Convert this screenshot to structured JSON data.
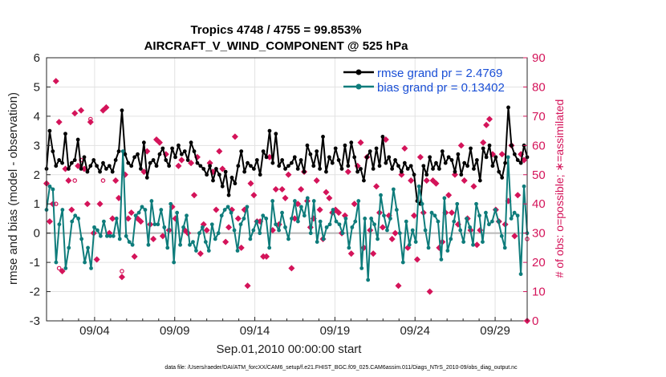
{
  "chart_data": {
    "type": "line",
    "title": "Tropics 4748 / 4755 = 99.853%",
    "subtitle": "AIRCRAFT_V_WIND_COMPONENT @ 525 hPa",
    "xlabel": "Sep.01,2010 00:00:00 start",
    "ylabel": "rmse and bias (model - observation)",
    "ylabel_right": "# of obs: o=possible; ∗=assimilated",
    "xlim": [
      1.0,
      31.0
    ],
    "ylim": [
      -3,
      6
    ],
    "ylim_right": [
      0,
      90
    ],
    "x_tick_values": [
      4,
      9,
      14,
      19,
      24,
      29
    ],
    "x_tick_labels": [
      "09/04",
      "09/09",
      "09/14",
      "09/19",
      "09/24",
      "09/29"
    ],
    "y_ticks": [
      "-3",
      "-2",
      "-1",
      "0",
      "1",
      "2",
      "3",
      "4",
      "5",
      "6"
    ],
    "y_ticks_right": [
      "0",
      "10",
      "20",
      "30",
      "40",
      "50",
      "60",
      "70",
      "80",
      "90"
    ],
    "grid": true,
    "legend_position": "top-right",
    "series": [
      {
        "name": "rmse grand pr = 2.4769",
        "color": "#000000",
        "values": [
          2.2,
          3.5,
          2.8,
          2.3,
          2.5,
          2.4,
          3.4,
          2.2,
          2.4,
          2.5,
          3.2,
          2.2,
          2.6,
          2.1,
          2.3,
          2.5,
          2.3,
          2.1,
          2.4,
          2.2,
          2.3,
          2.1,
          2.5,
          2.8,
          4.2,
          2.7,
          2.4,
          2.3,
          2.6,
          2.7,
          2.2,
          3.1,
          1.9,
          2.4,
          2.5,
          2.3,
          2.7,
          2.9,
          2.5,
          2.3,
          2.9,
          2.6,
          3.0,
          2.7,
          2.8,
          2.5,
          3.1,
          2.8,
          2.4,
          2.3,
          2.2,
          2.0,
          2.3,
          1.8,
          2.2,
          2.0,
          1.6,
          2.1,
          1.3,
          1.9,
          1.7,
          2.3,
          2.8,
          2.1,
          2.4,
          2.3,
          2.2,
          2.5,
          2.0,
          2.8,
          2.6,
          3.5,
          2.4,
          3.4,
          2.3,
          2.5,
          2.2,
          2.3,
          2.4,
          2.6,
          2.2,
          2.5,
          2.1,
          3.0,
          2.7,
          2.3,
          2.8,
          2.2,
          3.3,
          2.1,
          2.6,
          2.4,
          2.9,
          2.5,
          2.2,
          3.0,
          2.3,
          3.1,
          2.6,
          2.1,
          2.2,
          1.8,
          2.6,
          2.8,
          2.2,
          2.9,
          2.3,
          3.3,
          2.4,
          2.6,
          2.2,
          2.5,
          2.3,
          2.1,
          2.4,
          2.2,
          2.3,
          2.0,
          1.1,
          1.0,
          2.3,
          2.0,
          2.6,
          2.2,
          2.4,
          2.2,
          2.8,
          2.4,
          2.6,
          2.5,
          2.1,
          2.7,
          2.0,
          2.4,
          2.3,
          2.9,
          2.2,
          2.5,
          1.8,
          2.9,
          2.6,
          3.0,
          2.3,
          2.6,
          2.1,
          1.9,
          2.4,
          4.3,
          3.0,
          2.7,
          2.5,
          2.4,
          3.0,
          2.6
        ]
      },
      {
        "name": "bias grand pr = 0.13402",
        "color": "#0e7c7b",
        "values": [
          0.8,
          1.6,
          1.5,
          -1.0,
          0.3,
          0.8,
          -1.2,
          -0.5,
          0.4,
          0.6,
          0.5,
          -0.2,
          -1.0,
          -0.5,
          -1.2,
          0.2,
          0.1,
          -0.1,
          0.4,
          -0.1,
          -0.1,
          -0.1,
          0.5,
          -0.2,
          2.8,
          -0.1,
          -0.3,
          -0.4,
          0.6,
          0.7,
          0.9,
          0.8,
          -0.4,
          1.1,
          0.3,
          0.3,
          0.8,
          0.2,
          -0.5,
          1.0,
          -1.0,
          0.7,
          -0.4,
          0.2,
          0.6,
          -0.4,
          -0.3,
          -0.6,
          0.0,
          0.2,
          -0.3,
          -0.6,
          0.3,
          -0.2,
          0.0,
          0.6,
          0.8,
          0.9,
          0.7,
          0.1,
          -0.6,
          0.3,
          0.5,
          0.9,
          -0.2,
          0.1,
          0.4,
          0.0,
          0.6,
          0.5,
          -0.5,
          1.1,
          0.3,
          0.1,
          0.7,
          0.2,
          -0.2,
          0.5,
          1.1,
          0.4,
          0.9,
          0.6,
          1.2,
          0.0,
          1.1,
          -0.3,
          0.4,
          -0.2,
          0.2,
          0.3,
          0.8,
          0.4,
          0.3,
          0.0,
          0.5,
          -0.5,
          0.2,
          0.4,
          1.1,
          -1.2,
          0.5,
          -1.6,
          0.5,
          0.3,
          -0.2,
          1.3,
          0.6,
          0.1,
          0.5,
          1.5,
          0.8,
          0.0,
          -1.0,
          0.4,
          -0.4,
          0.1,
          -0.3,
          1.6,
          1.0,
          0.1,
          -0.5,
          0.7,
          0.6,
          0.4,
          -0.9,
          1.2,
          -0.6,
          -0.2,
          0.4,
          1.0,
          0.1,
          -0.3,
          0.5,
          0.2,
          -0.4,
          1.0,
          0.6,
          -0.3,
          0.7,
          0.3,
          0.4,
          0.8,
          0.4,
          -0.1,
          -0.5,
          2.6,
          0.5,
          0.7,
          0.6,
          -1.4,
          1.6,
          0.0
        ]
      }
    ],
    "obs_possible": [
      47,
      34,
      40,
      40,
      18,
      17,
      52,
      48,
      38,
      48,
      53,
      55,
      52,
      40,
      69,
      30,
      21,
      40,
      48,
      73,
      30,
      35,
      48,
      42,
      17,
      50,
      35,
      37,
      22,
      35,
      34,
      51,
      58,
      33,
      28,
      62,
      61,
      29,
      57,
      31,
      39,
      35,
      53,
      55,
      31,
      30,
      54,
      43,
      56,
      23,
      33,
      31,
      54,
      51,
      38,
      58,
      52,
      27,
      32,
      38,
      63,
      35,
      25,
      38,
      12,
      47,
      43,
      34,
      34,
      22,
      22,
      56,
      31,
      45,
      33,
      45,
      42,
      50,
      18,
      35,
      40,
      45,
      51,
      41,
      32,
      35,
      48,
      38,
      28,
      44,
      42,
      37,
      38,
      37,
      30,
      36,
      51,
      23,
      40,
      53,
      61,
      25,
      56,
      31,
      23,
      46,
      37,
      32,
      62,
      36,
      28,
      30,
      12,
      50,
      59,
      25,
      48,
      36,
      21,
      56,
      37,
      48,
      10,
      48,
      47,
      25,
      27,
      37,
      43,
      37,
      50,
      33,
      60,
      48,
      35,
      31,
      46,
      26,
      31,
      61,
      67,
      69,
      57,
      38,
      34,
      57,
      33,
      41,
      60,
      29,
      43,
      57,
      55,
      28
    ],
    "obs_assimilated": [
      47,
      34,
      40,
      82,
      68,
      17,
      52,
      48,
      38,
      71,
      53,
      72,
      52,
      40,
      68,
      30,
      21,
      40,
      72,
      73,
      30,
      35,
      48,
      42,
      15,
      50,
      35,
      37,
      22,
      35,
      34,
      51,
      58,
      33,
      28,
      62,
      61,
      29,
      57,
      31,
      39,
      35,
      53,
      55,
      31,
      30,
      54,
      43,
      56,
      23,
      33,
      31,
      54,
      51,
      38,
      58,
      52,
      27,
      32,
      38,
      63,
      35,
      25,
      38,
      12,
      47,
      43,
      34,
      34,
      22,
      22,
      56,
      31,
      45,
      33,
      45,
      42,
      50,
      18,
      35,
      40,
      45,
      51,
      41,
      32,
      35,
      48,
      38,
      28,
      44,
      42,
      37,
      38,
      37,
      30,
      36,
      51,
      23,
      40,
      53,
      61,
      25,
      56,
      31,
      23,
      46,
      37,
      32,
      62,
      36,
      28,
      30,
      12,
      50,
      59,
      25,
      48,
      36,
      21,
      56,
      37,
      48,
      10,
      48,
      47,
      25,
      27,
      37,
      43,
      37,
      50,
      33,
      60,
      48,
      35,
      31,
      46,
      26,
      31,
      61,
      67,
      69,
      57,
      38,
      34,
      57,
      33,
      41,
      60,
      29,
      43,
      57,
      55,
      0
    ],
    "annotation": "data file: /Users/raeder/DAI/ATM_forcXX/CAM6_setup/f.e21.FHIST_BGC.f09_025.CAM6assim.011/Diags_NTrS_2010-09/obs_diag_output.nc",
    "colors": {
      "rmse": "#000000",
      "bias": "#0e7c7b",
      "obs": "#d4145a",
      "grid": "#e2e2e2",
      "zero_line": "#b8b8b8",
      "legend_text": "#1a4fd6"
    }
  }
}
